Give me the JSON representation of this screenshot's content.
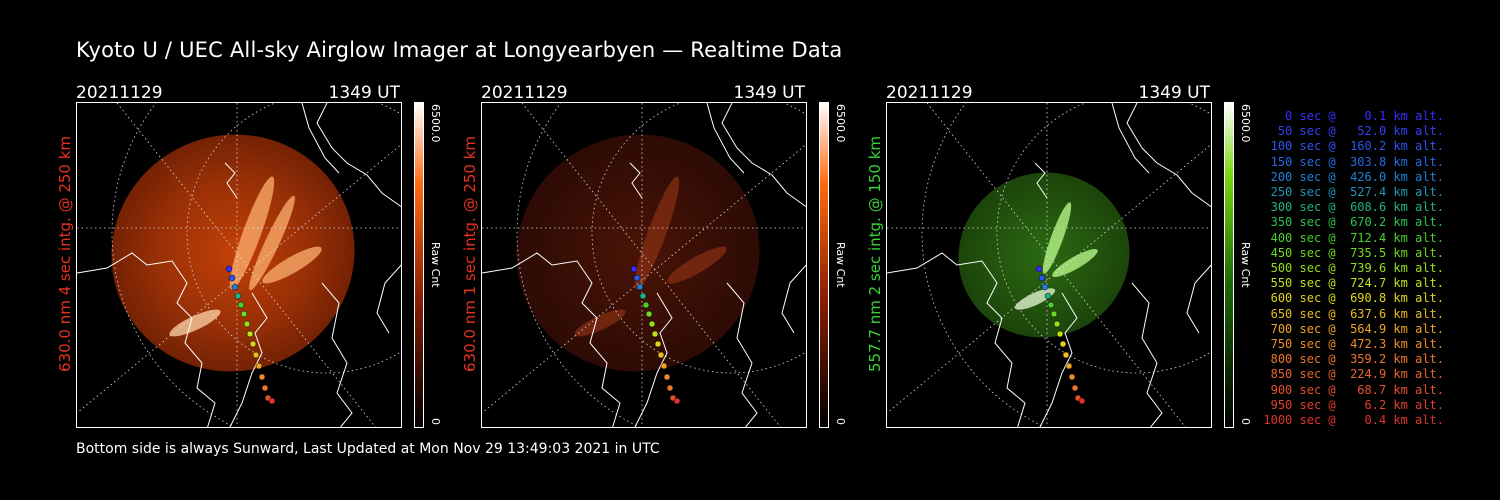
{
  "title": "Kyoto U / UEC All-sky Airglow Imager at Longyearbyen — Realtime Data",
  "footer": "Bottom side is always Sunward, Last Updated at Mon Nov 29 13:49:03 2021 in UTC",
  "colors": {
    "red_label": "#e8321e",
    "green_label": "#3ad23a"
  },
  "panels": [
    {
      "date": "20211129",
      "time": "1349 UT",
      "label": "630.0 nm 4 sec intg. @ 250 km",
      "label_color": "#e8321e",
      "cbar_max": "6500.0",
      "cbar_min": "0",
      "cbar_unit": "Raw Cnt",
      "colormap": "red"
    },
    {
      "date": "20211129",
      "time": "1349 UT",
      "label": "630.0 nm 1 sec intg. @ 250 km",
      "label_color": "#e8321e",
      "cbar_max": "6500.0",
      "cbar_min": "0",
      "cbar_unit": "Raw Cnt",
      "colormap": "red-dim"
    },
    {
      "date": "20211129",
      "time": "1349 UT",
      "label": "557.7 nm 2 sec intg. @ 150 km",
      "label_color": "#3ad23a",
      "cbar_max": "6500.0",
      "cbar_min": "0",
      "cbar_unit": "Raw Cnt",
      "colormap": "green"
    }
  ],
  "legend": [
    {
      "text": "   0 sec @    0.1 km alt.",
      "color": "#3a2cff"
    },
    {
      "text": "  50 sec @   52.0 km alt.",
      "color": "#3340f5"
    },
    {
      "text": " 100 sec @  160.2 km alt.",
      "color": "#2c55ef"
    },
    {
      "text": " 150 sec @  303.8 km alt.",
      "color": "#256ae5"
    },
    {
      "text": " 200 sec @  426.0 km alt.",
      "color": "#2080d6"
    },
    {
      "text": " 250 sec @  527.4 km alt.",
      "color": "#1e98b8"
    },
    {
      "text": " 300 sec @  608.6 km alt.",
      "color": "#20b08a"
    },
    {
      "text": " 350 sec @  670.2 km alt.",
      "color": "#2cc44e"
    },
    {
      "text": " 400 sec @  712.4 km alt.",
      "color": "#48d02c"
    },
    {
      "text": " 450 sec @  735.5 km alt.",
      "color": "#6ed81e"
    },
    {
      "text": " 500 sec @  739.6 km alt.",
      "color": "#96e01a"
    },
    {
      "text": " 550 sec @  724.7 km alt.",
      "color": "#c0e01a"
    },
    {
      "text": " 600 sec @  690.8 km alt.",
      "color": "#e0d41a"
    },
    {
      "text": " 650 sec @  637.6 km alt.",
      "color": "#ecbc1e"
    },
    {
      "text": " 700 sec @  564.9 km alt.",
      "color": "#f0a422"
    },
    {
      "text": " 750 sec @  472.3 km alt.",
      "color": "#f08c26"
    },
    {
      "text": " 800 sec @  359.2 km alt.",
      "color": "#ee762a"
    },
    {
      "text": " 850 sec @  224.9 km alt.",
      "color": "#ea622c"
    },
    {
      "text": " 900 sec @   68.7 km alt.",
      "color": "#e6502c"
    },
    {
      "text": " 950 sec @    6.2 km alt.",
      "color": "#e2402c"
    },
    {
      "text": "1000 sec @    0.4 km alt.",
      "color": "#de342c"
    }
  ]
}
